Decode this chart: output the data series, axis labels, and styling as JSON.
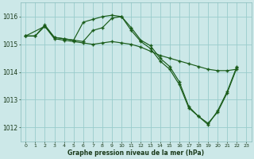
{
  "xlabel": "Graphe pression niveau de la mer (hPa)",
  "bg_color": "#cce8e8",
  "grid_color": "#99cccc",
  "line_color": "#1a5c1a",
  "xlim": [
    -0.5,
    23.5
  ],
  "ylim": [
    1011.5,
    1016.5
  ],
  "yticks": [
    1012,
    1013,
    1014,
    1015,
    1016
  ],
  "xticks": [
    0,
    1,
    2,
    3,
    4,
    5,
    6,
    7,
    8,
    9,
    10,
    11,
    12,
    13,
    14,
    15,
    16,
    17,
    18,
    19,
    20,
    21,
    22,
    23
  ],
  "line1_x": [
    0,
    1,
    2,
    3,
    4,
    5,
    6,
    7,
    8,
    9,
    10,
    11,
    12,
    13,
    14,
    15,
    16,
    17,
    18,
    19,
    20,
    21,
    22
  ],
  "line1_y": [
    1015.3,
    1015.3,
    1015.7,
    1015.25,
    1015.2,
    1015.15,
    1015.8,
    1015.9,
    1016.0,
    1016.05,
    1016.0,
    1015.6,
    1015.15,
    1014.95,
    1014.5,
    1014.2,
    1013.65,
    1012.75,
    1012.4,
    1012.1,
    1012.6,
    1013.3,
    1014.2
  ],
  "line2_x": [
    0,
    1,
    2,
    3,
    4,
    5,
    6,
    7,
    8,
    9,
    10,
    11,
    12,
    13,
    14,
    15,
    16,
    17,
    18,
    19,
    20,
    21,
    22
  ],
  "line2_y": [
    1015.3,
    1015.3,
    1015.65,
    1015.2,
    1015.15,
    1015.1,
    1015.05,
    1015.0,
    1015.05,
    1015.1,
    1015.05,
    1015.0,
    1014.9,
    1014.75,
    1014.6,
    1014.5,
    1014.4,
    1014.3,
    1014.2,
    1014.1,
    1014.05,
    1014.05,
    1014.1
  ],
  "line3_x": [
    0,
    2,
    3,
    4,
    5,
    6,
    7,
    8,
    9,
    10,
    11,
    12,
    13,
    14,
    15,
    16,
    17,
    18,
    19,
    20,
    21,
    22
  ],
  "line3_y": [
    1015.3,
    1015.65,
    1015.25,
    1015.2,
    1015.15,
    1015.1,
    1015.5,
    1015.6,
    1015.95,
    1016.0,
    1015.5,
    1015.1,
    1014.85,
    1014.4,
    1014.1,
    1013.55,
    1012.7,
    1012.4,
    1012.15,
    1012.55,
    1013.25,
    1014.15
  ]
}
